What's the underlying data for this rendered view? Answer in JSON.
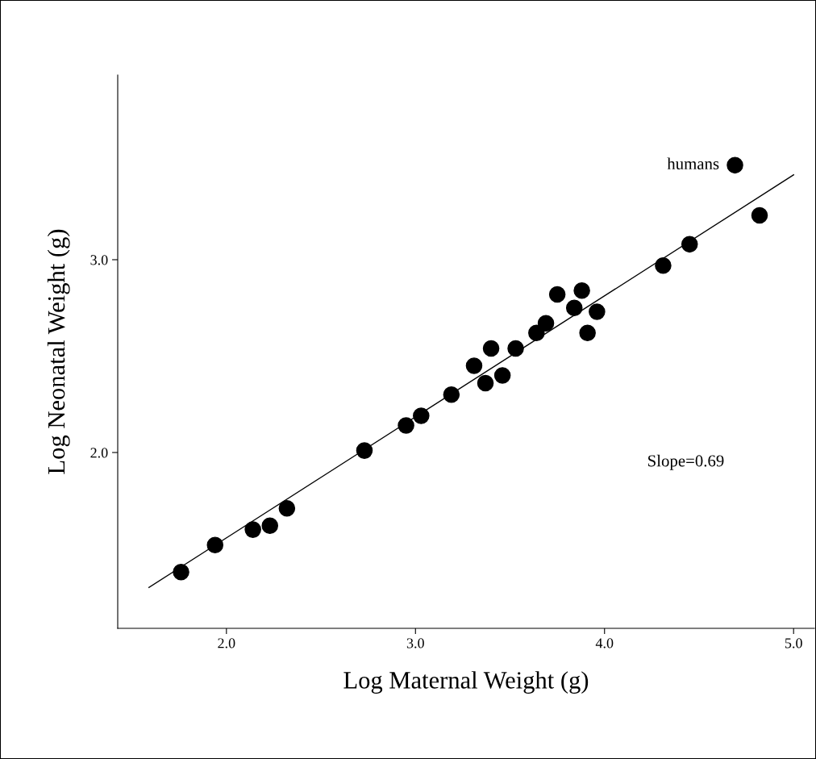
{
  "chart_data": {
    "type": "scatter",
    "xlabel": "Log Maternal Weight (g)",
    "ylabel": "Log Neonatal Weight (g)",
    "xlim": [
      1.425,
      5.11
    ],
    "ylim": [
      1.088,
      3.958
    ],
    "xticks": [
      {
        "value": 2,
        "label": "2.0"
      },
      {
        "value": 3,
        "label": "3.0"
      },
      {
        "value": 4,
        "label": "4.0"
      },
      {
        "value": 5,
        "label": "5.0"
      }
    ],
    "yticks": [
      {
        "value": 2,
        "label": "2.0"
      },
      {
        "value": 3,
        "label": "3.0"
      }
    ],
    "grid": false,
    "legend": false,
    "series": [
      {
        "color": "#000000",
        "marker": "circle",
        "x": [
          1.76,
          1.94,
          2.14,
          2.23,
          2.32,
          2.73,
          2.95,
          3.03,
          3.19,
          3.31,
          3.4,
          3.37,
          3.46,
          3.53,
          3.64,
          3.69,
          3.75,
          3.88,
          3.84,
          3.96,
          3.91,
          4.31,
          4.45,
          4.69,
          4.82
        ],
        "values": [
          1.38,
          1.52,
          1.6,
          1.62,
          1.71,
          2.01,
          2.14,
          2.19,
          2.3,
          2.45,
          2.54,
          2.36,
          2.4,
          2.54,
          2.62,
          2.67,
          2.82,
          2.84,
          2.75,
          2.73,
          2.62,
          2.97,
          3.08,
          3.49,
          3.23
        ]
      },
      {
        "type": "line",
        "color": "#000000",
        "line_style": "solid",
        "marker": "none",
        "x": [
          1.59,
          5.0
        ],
        "values": [
          1.3,
          3.44
        ]
      }
    ],
    "annotations": [
      {
        "text": "humans",
        "x": 4.69,
        "y": 3.49
      },
      "Slope=0.69"
    ]
  }
}
